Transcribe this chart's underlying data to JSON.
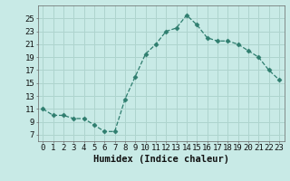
{
  "x": [
    0,
    1,
    2,
    3,
    4,
    5,
    6,
    7,
    8,
    9,
    10,
    11,
    12,
    13,
    14,
    15,
    16,
    17,
    18,
    19,
    20,
    21,
    22,
    23
  ],
  "y": [
    11,
    10,
    10,
    9.5,
    9.5,
    8.5,
    7.5,
    7.5,
    12.5,
    16,
    19.5,
    21,
    23,
    23.5,
    25.5,
    24,
    22,
    21.5,
    21.5,
    21,
    20,
    19,
    17,
    15.5
  ],
  "line_color": "#2e7d6e",
  "marker": "D",
  "marker_size": 2.5,
  "bg_color": "#c8eae6",
  "grid_color": "#aed4ce",
  "xlabel": "Humidex (Indice chaleur)",
  "xlim": [
    -0.5,
    23.5
  ],
  "ylim": [
    6,
    27
  ],
  "yticks": [
    7,
    9,
    11,
    13,
    15,
    17,
    19,
    21,
    23,
    25
  ],
  "xticks": [
    0,
    1,
    2,
    3,
    4,
    5,
    6,
    7,
    8,
    9,
    10,
    11,
    12,
    13,
    14,
    15,
    16,
    17,
    18,
    19,
    20,
    21,
    22,
    23
  ],
  "tick_fontsize": 6.5,
  "xlabel_fontsize": 7.5
}
